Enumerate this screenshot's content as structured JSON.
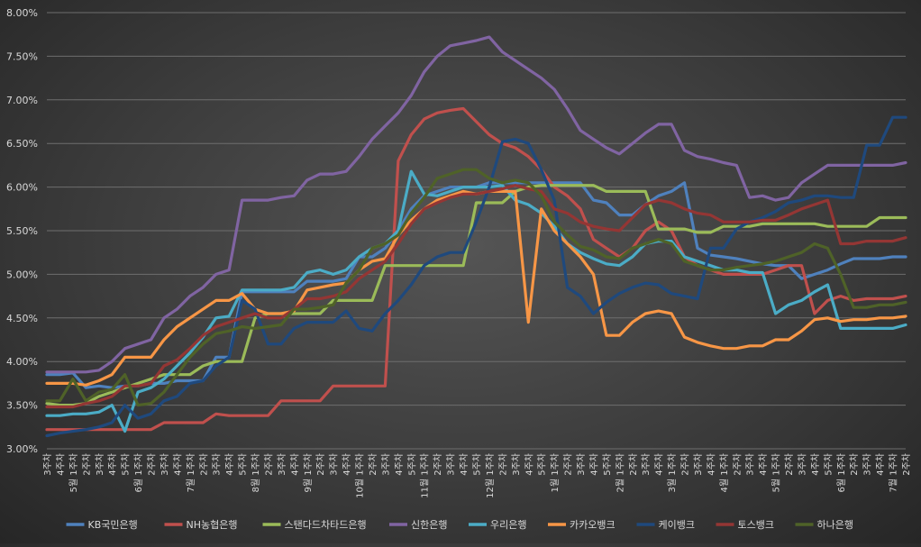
{
  "chart_data": {
    "type": "line",
    "title": "",
    "xlabel": "",
    "ylabel": "",
    "ylim": [
      3.0,
      8.0
    ],
    "y_ticks": [
      "3.00%",
      "3.50%",
      "4.00%",
      "4.50%",
      "5.00%",
      "5.50%",
      "6.00%",
      "6.50%",
      "7.00%",
      "7.50%",
      "8.00%"
    ],
    "y_tick_values": [
      3.0,
      3.5,
      4.0,
      4.5,
      5.0,
      5.5,
      6.0,
      6.5,
      7.0,
      7.5,
      8.0
    ],
    "grid": true,
    "legend_position": "bottom",
    "x_labels": [
      "3주차",
      "4주차",
      "5월 1주차",
      "2주차",
      "3주차",
      "4주차",
      "5주차",
      "6월 1주차",
      "2주차",
      "3주차",
      "4주차",
      "7월 1주차",
      "2주차",
      "3주차",
      "4주차",
      "5주차",
      "8월 1주차",
      "2주차",
      "3주차",
      "4주차",
      "9월 1주차",
      "2주차",
      "3주차",
      "4주차",
      "10월 1주차",
      "2주차",
      "3주차",
      "4주차",
      "5주차",
      "11월 1주차",
      "2주차",
      "3주차",
      "4주차",
      "5주차",
      "12월 1주차",
      "2주차",
      "3주차",
      "4주차",
      "5주차",
      "1월 1주차",
      "2주차",
      "3주차",
      "4주차",
      "5주차",
      "2월 1주차",
      "2주차",
      "3주차",
      "4주차",
      "3월 1주차",
      "2주차",
      "3주차",
      "4주차",
      "4월 1주차",
      "2주차",
      "3주차",
      "4주차",
      "5월 1주차",
      "2주차",
      "3주차",
      "4주차",
      "5주차",
      "6월 1주차",
      "2주차",
      "3주차",
      "4주차",
      "7월 1주차",
      "2주차"
    ],
    "series": [
      {
        "name": "KB국민은행",
        "color": "#4f81bd",
        "values": [
          3.85,
          3.85,
          3.87,
          3.7,
          3.72,
          3.7,
          3.72,
          3.72,
          3.75,
          3.75,
          3.78,
          3.78,
          3.78,
          4.05,
          4.05,
          4.8,
          4.8,
          4.8,
          4.8,
          4.8,
          4.92,
          4.92,
          4.92,
          4.95,
          5.2,
          5.2,
          5.3,
          5.5,
          5.75,
          5.9,
          5.95,
          6.0,
          6.0,
          6.0,
          6.05,
          6.05,
          6.05,
          6.05,
          6.05,
          6.05,
          6.05,
          6.05,
          5.85,
          5.82,
          5.68,
          5.68,
          5.8,
          5.9,
          5.95,
          6.05,
          5.3,
          5.22,
          5.2,
          5.18,
          5.15,
          5.12,
          5.1,
          5.1,
          4.95,
          5.0,
          5.05,
          5.12,
          5.18,
          5.18,
          5.18,
          5.2,
          5.2
        ]
      },
      {
        "name": "NH농협은행",
        "color": "#c0504d",
        "values": [
          3.22,
          3.22,
          3.22,
          3.22,
          3.22,
          3.22,
          3.22,
          3.22,
          3.22,
          3.3,
          3.3,
          3.3,
          3.3,
          3.4,
          3.38,
          3.38,
          3.38,
          3.38,
          3.55,
          3.55,
          3.55,
          3.55,
          3.72,
          3.72,
          3.72,
          3.72,
          3.72,
          6.3,
          6.6,
          6.78,
          6.85,
          6.88,
          6.9,
          6.75,
          6.6,
          6.5,
          6.45,
          6.35,
          6.2,
          6.0,
          5.9,
          5.75,
          5.4,
          5.3,
          5.2,
          5.3,
          5.5,
          5.6,
          5.5,
          5.2,
          5.1,
          5.05,
          5.0,
          5.0,
          5.0,
          5.0,
          5.05,
          5.1,
          5.1,
          4.55,
          4.7,
          4.75,
          4.7,
          4.72,
          4.72,
          4.72,
          4.75
        ]
      },
      {
        "name": "스탠다드차타드은행",
        "color": "#9bbb59",
        "values": [
          3.52,
          3.5,
          3.5,
          3.52,
          3.6,
          3.65,
          3.7,
          3.75,
          3.8,
          3.85,
          3.85,
          3.85,
          3.95,
          4.0,
          4.0,
          4.0,
          4.5,
          4.55,
          4.55,
          4.55,
          4.55,
          4.55,
          4.7,
          4.7,
          4.7,
          4.7,
          5.1,
          5.1,
          5.1,
          5.1,
          5.1,
          5.1,
          5.1,
          5.82,
          5.82,
          5.82,
          5.95,
          6.0,
          6.02,
          6.02,
          6.02,
          6.02,
          6.02,
          5.95,
          5.95,
          5.95,
          5.95,
          5.52,
          5.52,
          5.52,
          5.48,
          5.48,
          5.55,
          5.55,
          5.55,
          5.58,
          5.58,
          5.58,
          5.58,
          5.58,
          5.55,
          5.55,
          5.55,
          5.55,
          5.65,
          5.65,
          5.65
        ]
      },
      {
        "name": "신한은행",
        "color": "#8064a2",
        "values": [
          3.88,
          3.88,
          3.88,
          3.88,
          3.9,
          4.0,
          4.15,
          4.2,
          4.25,
          4.5,
          4.6,
          4.75,
          4.85,
          5.0,
          5.05,
          5.85,
          5.85,
          5.85,
          5.88,
          5.9,
          6.08,
          6.15,
          6.15,
          6.18,
          6.35,
          6.55,
          6.7,
          6.85,
          7.05,
          7.32,
          7.5,
          7.62,
          7.65,
          7.68,
          7.72,
          7.55,
          7.45,
          7.35,
          7.25,
          7.12,
          6.9,
          6.65,
          6.55,
          6.45,
          6.38,
          6.5,
          6.62,
          6.72,
          6.72,
          6.42,
          6.35,
          6.32,
          6.28,
          6.25,
          5.88,
          5.9,
          5.85,
          5.88,
          6.05,
          6.15,
          6.25,
          6.25,
          6.25,
          6.25,
          6.25,
          6.25,
          6.28
        ]
      },
      {
        "name": "우리은행",
        "color": "#4bacc6",
        "values": [
          3.38,
          3.38,
          3.4,
          3.4,
          3.42,
          3.5,
          3.2,
          3.65,
          3.7,
          3.8,
          3.95,
          4.1,
          4.28,
          4.5,
          4.52,
          4.82,
          4.82,
          4.82,
          4.82,
          4.85,
          5.02,
          5.05,
          5.0,
          5.05,
          5.2,
          5.3,
          5.35,
          5.5,
          6.18,
          5.92,
          5.9,
          5.95,
          6.0,
          6.0,
          6.0,
          6.02,
          5.85,
          5.8,
          5.7,
          5.55,
          5.35,
          5.25,
          5.18,
          5.12,
          5.1,
          5.2,
          5.35,
          5.38,
          5.38,
          5.2,
          5.15,
          5.1,
          5.05,
          5.05,
          5.02,
          5.02,
          4.55,
          4.65,
          4.7,
          4.8,
          4.88,
          4.38,
          4.38,
          4.38,
          4.38,
          4.38,
          4.42
        ]
      },
      {
        "name": "카카오뱅크",
        "color": "#f79646",
        "values": [
          3.75,
          3.75,
          3.75,
          3.73,
          3.78,
          3.85,
          4.05,
          4.05,
          4.05,
          4.25,
          4.4,
          4.5,
          4.6,
          4.7,
          4.7,
          4.78,
          4.6,
          4.55,
          4.55,
          4.58,
          4.82,
          4.85,
          4.88,
          4.9,
          5.05,
          5.15,
          5.18,
          5.45,
          5.62,
          5.75,
          5.85,
          5.9,
          5.95,
          5.92,
          5.95,
          5.95,
          5.95,
          4.45,
          5.75,
          5.5,
          5.35,
          5.2,
          5.0,
          4.3,
          4.3,
          4.45,
          4.55,
          4.58,
          4.55,
          4.28,
          4.22,
          4.18,
          4.15,
          4.15,
          4.18,
          4.18,
          4.25,
          4.25,
          4.35,
          4.48,
          4.5,
          4.46,
          4.48,
          4.48,
          4.5,
          4.5,
          4.52
        ]
      },
      {
        "name": "케이뱅크",
        "color": "#1f497d",
        "values": [
          3.15,
          3.18,
          3.2,
          3.22,
          3.25,
          3.3,
          3.5,
          3.35,
          3.4,
          3.55,
          3.6,
          3.75,
          3.78,
          3.95,
          4.05,
          4.7,
          4.6,
          4.2,
          4.2,
          4.38,
          4.45,
          4.45,
          4.45,
          4.58,
          4.38,
          4.35,
          4.55,
          4.7,
          4.88,
          5.1,
          5.2,
          5.25,
          5.25,
          5.6,
          6.0,
          6.52,
          6.55,
          6.5,
          6.2,
          5.85,
          4.85,
          4.75,
          4.55,
          4.68,
          4.78,
          4.85,
          4.9,
          4.88,
          4.78,
          4.75,
          4.72,
          5.3,
          5.3,
          5.52,
          5.6,
          5.65,
          5.72,
          5.82,
          5.85,
          5.9,
          5.9,
          5.88,
          5.88,
          6.48,
          6.48,
          6.8,
          6.8
        ]
      },
      {
        "name": "토스뱅크",
        "color": "#943634",
        "values": [
          3.48,
          3.48,
          3.48,
          3.52,
          3.55,
          3.6,
          3.72,
          3.72,
          3.75,
          3.95,
          4.02,
          4.15,
          4.3,
          4.4,
          4.45,
          4.5,
          4.55,
          4.5,
          4.5,
          4.6,
          4.72,
          4.72,
          4.75,
          4.8,
          4.95,
          5.05,
          5.15,
          5.35,
          5.58,
          5.75,
          5.82,
          5.88,
          5.92,
          5.92,
          5.95,
          5.98,
          6.02,
          5.98,
          5.95,
          5.75,
          5.7,
          5.6,
          5.55,
          5.52,
          5.5,
          5.65,
          5.8,
          5.85,
          5.82,
          5.75,
          5.7,
          5.68,
          5.6,
          5.6,
          5.6,
          5.62,
          5.62,
          5.68,
          5.75,
          5.8,
          5.85,
          5.35,
          5.35,
          5.38,
          5.38,
          5.38,
          5.42
        ]
      },
      {
        "name": "하나은행",
        "color": "#4f6228",
        "values": [
          3.55,
          3.55,
          3.8,
          3.55,
          3.65,
          3.68,
          3.85,
          3.5,
          3.52,
          3.65,
          3.85,
          4.05,
          4.2,
          4.32,
          4.35,
          4.4,
          4.38,
          4.4,
          4.42,
          4.6,
          4.6,
          4.62,
          4.65,
          4.9,
          5.05,
          5.3,
          5.35,
          5.45,
          5.7,
          5.88,
          6.1,
          6.15,
          6.2,
          6.2,
          6.1,
          6.05,
          6.08,
          6.05,
          5.9,
          5.6,
          5.45,
          5.32,
          5.28,
          5.2,
          5.18,
          5.3,
          5.35,
          5.4,
          5.35,
          5.15,
          5.1,
          5.05,
          5.05,
          5.08,
          5.1,
          5.12,
          5.15,
          5.2,
          5.25,
          5.35,
          5.3,
          5.0,
          4.62,
          4.62,
          4.65,
          4.65,
          4.68
        ]
      }
    ]
  }
}
